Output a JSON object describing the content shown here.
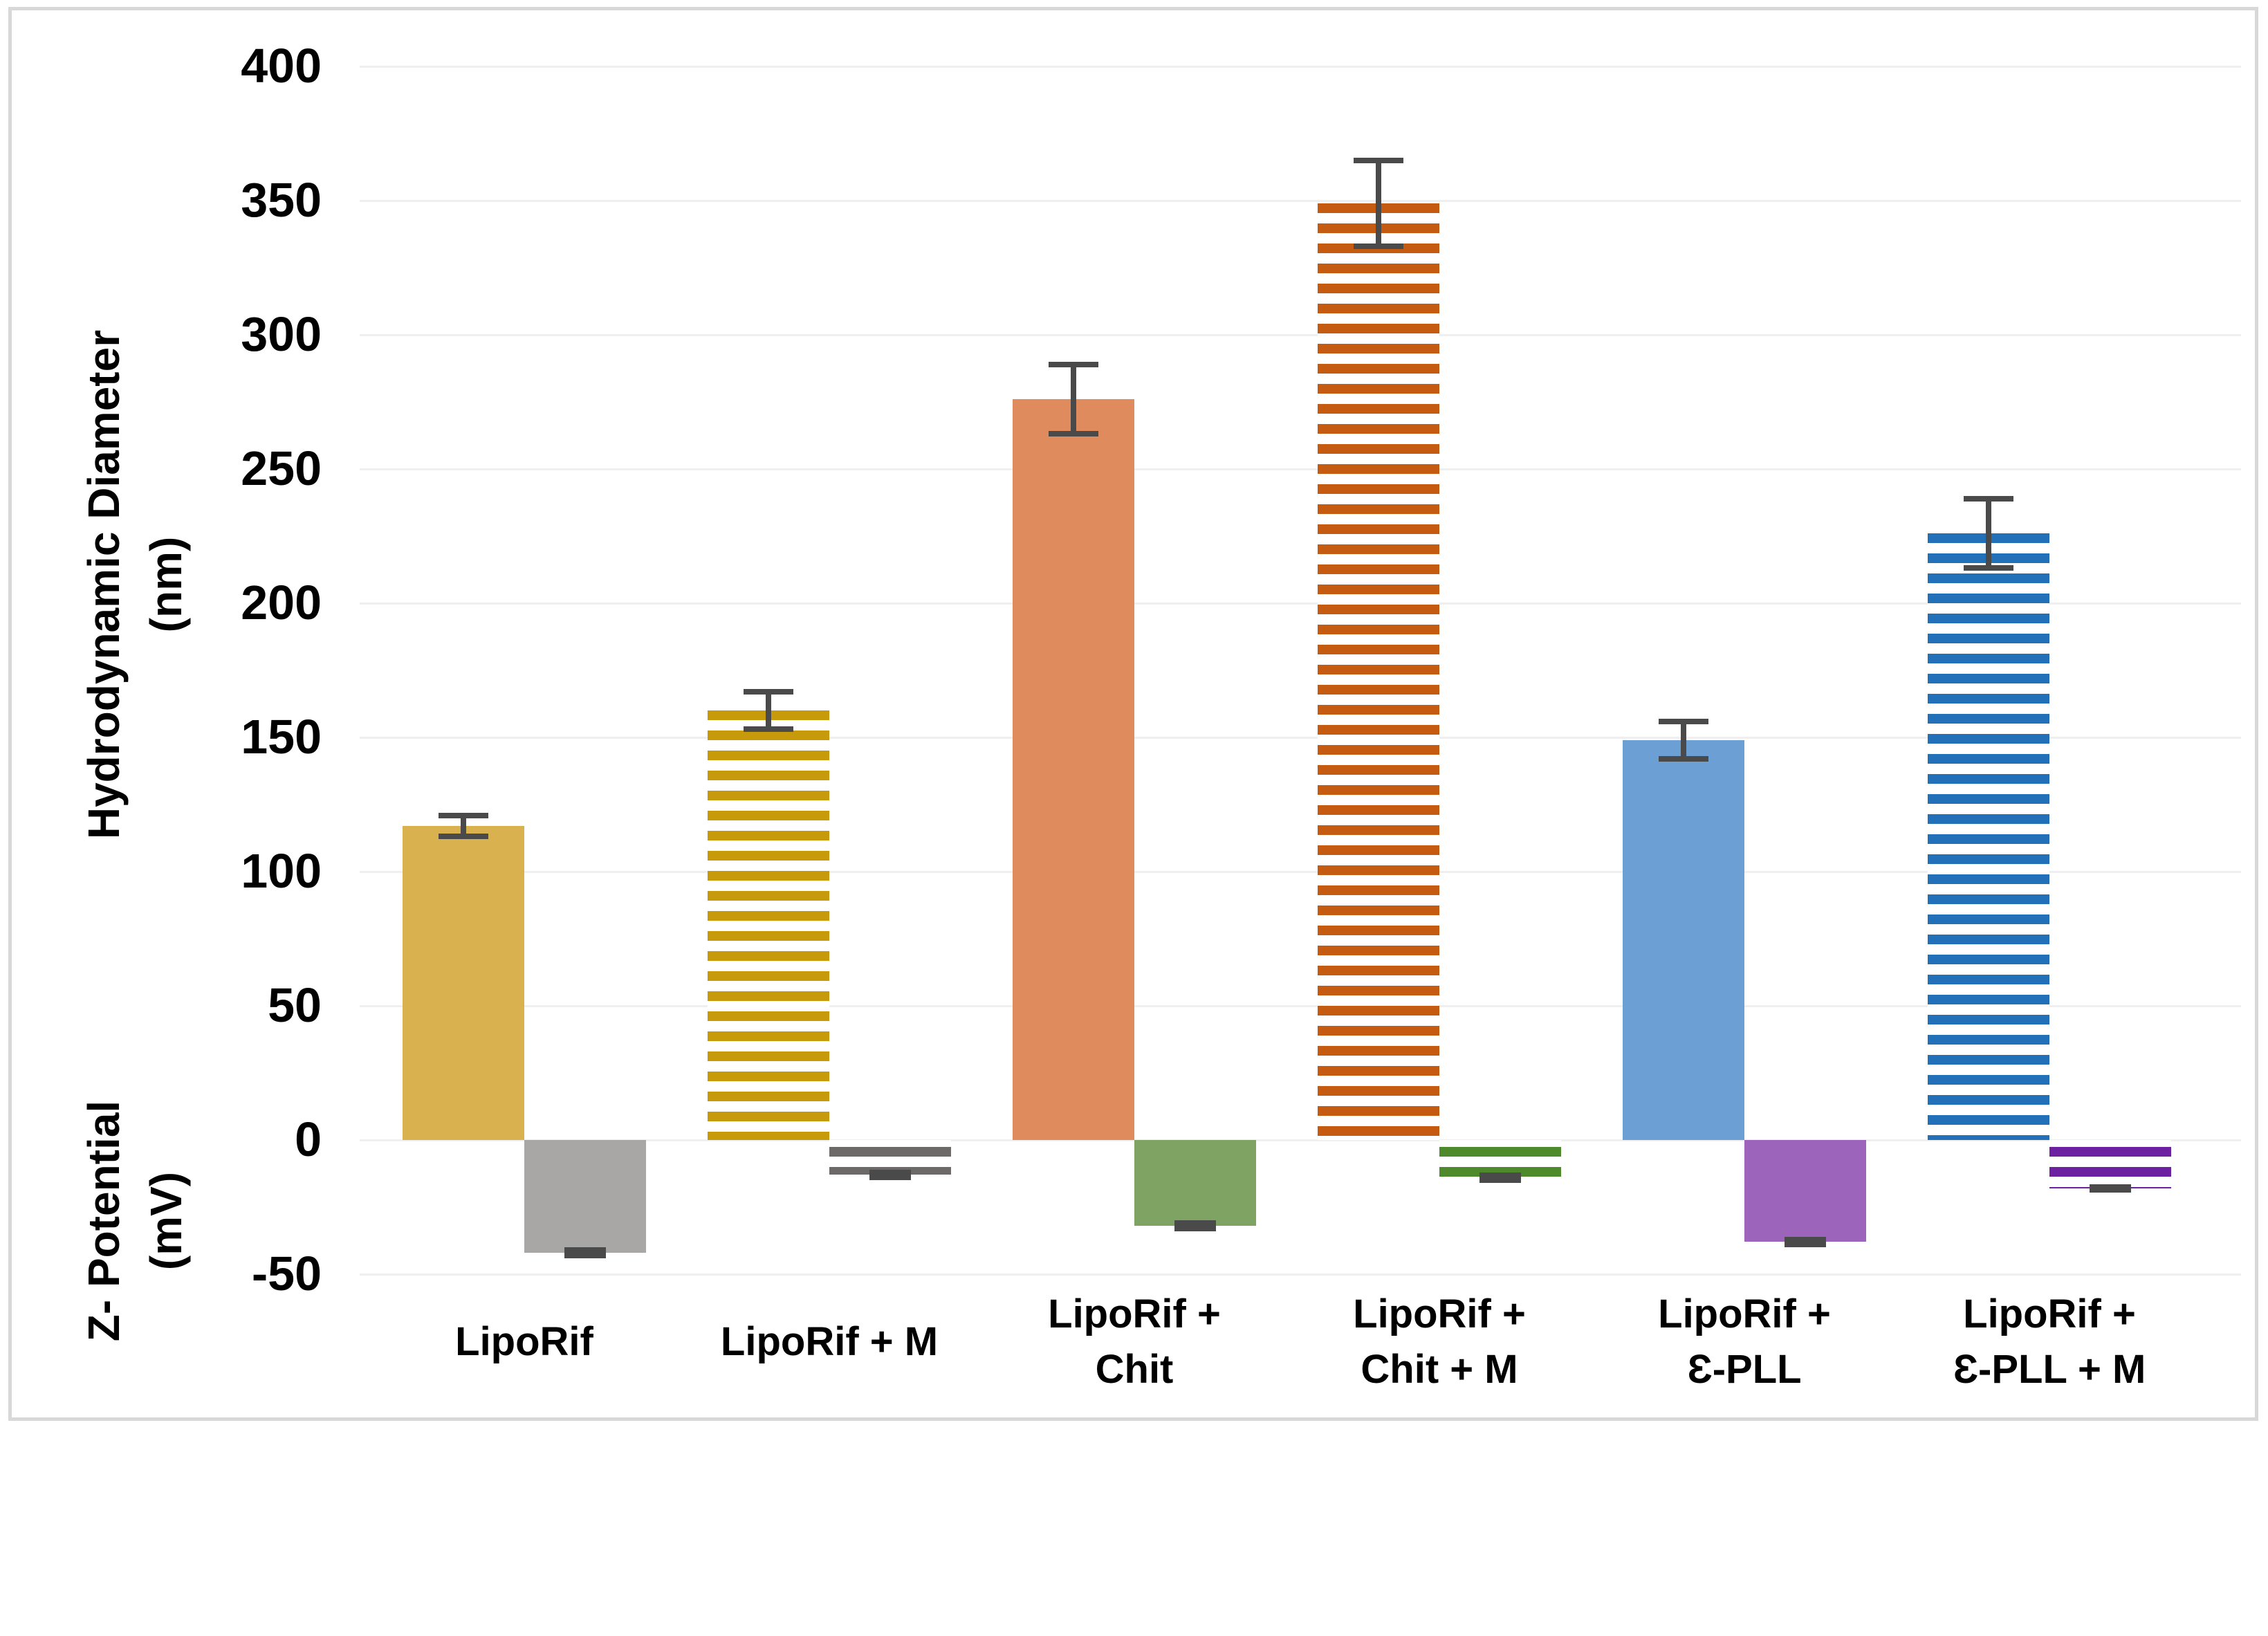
{
  "chart_data": {
    "type": "bar",
    "title": "",
    "legend": "none",
    "grid": "horizontal",
    "categories": [
      {
        "label": "LipoRif",
        "lines": [
          "LipoRif"
        ]
      },
      {
        "label": "LipoRif + M",
        "lines": [
          "LipoRif + M"
        ]
      },
      {
        "label": "LipoRif + Chit",
        "lines": [
          "LipoRif +",
          "Chit"
        ]
      },
      {
        "label": "LipoRif + Chit + M",
        "lines": [
          "LipoRif +",
          "Chit + M"
        ]
      },
      {
        "label": "LipoRif + Ɛ-PLL",
        "lines": [
          "LipoRif +",
          "Ɛ-PLL"
        ]
      },
      {
        "label": "LipoRif + Ɛ-PLL + M",
        "lines": [
          "LipoRif +",
          "Ɛ-PLL + M"
        ]
      }
    ],
    "series": [
      {
        "name": "Hydrodynamic Diameter (nm)",
        "values": [
          117,
          160,
          276,
          349,
          149,
          226
        ],
        "errors": [
          5,
          8,
          14,
          17,
          8,
          14
        ],
        "colors": [
          "#D9B24F",
          "#C69A0A",
          "#DF8B5D",
          "#C55A11",
          "#6C9FD4",
          "#2271B8"
        ],
        "patterns": [
          "solid",
          "striped",
          "solid",
          "striped",
          "solid",
          "striped"
        ]
      },
      {
        "name": "Z-Potential (mV)",
        "values": [
          -42,
          -13,
          -32,
          -14,
          -38,
          -18
        ],
        "errors": [
          2,
          2,
          2,
          2,
          2,
          1.5
        ],
        "colors": [
          "#A9A6A6",
          "#6E6969",
          "#7EA363",
          "#4E8A2B",
          "#9C64BB",
          "#6C22A0"
        ],
        "patterns": [
          "solid",
          "striped",
          "solid",
          "striped",
          "solid",
          "striped"
        ]
      }
    ],
    "y_axis": {
      "ticks": [
        400,
        350,
        300,
        250,
        200,
        150,
        100,
        50,
        0,
        -50
      ],
      "min": -50,
      "max": 400,
      "upper_label": "Hydrodynamic Diameter",
      "upper_unit": "(nm)",
      "lower_label": "Ζ- Potential",
      "lower_unit": "(mV)"
    },
    "colors": {
      "gridline": "#EFEFEF",
      "error_bar": "#4A4A4A",
      "frame_border": "#D8D8D8",
      "text": "#000000",
      "background": "#FFFFFF"
    }
  }
}
